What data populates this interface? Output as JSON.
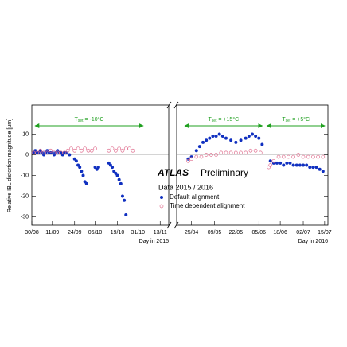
{
  "chart_data": {
    "type": "scatter",
    "ylabel": "Relative IBL distortion magnitude [μm]",
    "ylim": [
      -34,
      24
    ],
    "yticks": [
      10,
      0,
      -10,
      -20,
      -30
    ],
    "experiment": "ATLAS",
    "status": "Preliminary",
    "dataset": "Data 2015 / 2016",
    "series": [
      {
        "name": "Default alignment",
        "color": "#1030c0",
        "marker": "filled"
      },
      {
        "name": "Time dependent alignment",
        "color": "#e07090",
        "marker": "open"
      }
    ],
    "panels": [
      {
        "xlabel": "Day in 2015",
        "xlim": [
          0,
          80
        ],
        "xticks": [
          {
            "value": 0,
            "label": "30/08"
          },
          {
            "value": 12,
            "label": "11/09"
          },
          {
            "value": 25,
            "label": "24/09"
          },
          {
            "value": 37,
            "label": "06/10"
          },
          {
            "value": 50,
            "label": "19/10"
          },
          {
            "value": 62,
            "label": "31/10"
          },
          {
            "value": 75,
            "label": "13/11"
          }
        ],
        "data": [
          {
            "x": [
              1,
              2,
              3,
              4,
              5,
              6,
              7,
              8,
              9,
              10,
              11,
              12,
              13,
              14,
              15,
              16,
              17,
              18,
              19,
              20,
              22,
              25,
              26,
              27,
              28,
              29,
              30,
              31,
              32,
              37,
              38,
              39,
              45,
              46,
              47,
              48,
              49,
              50,
              51,
              52,
              53,
              54,
              55
            ],
            "values": [
              1,
              2,
              1,
              1,
              2,
              1,
              0,
              1,
              2,
              1,
              1,
              1,
              0,
              1,
              2,
              1,
              1,
              0,
              1,
              1,
              0,
              -2,
              -3,
              -5,
              -6,
              -8,
              -10,
              -13,
              -14,
              -6,
              -7,
              -6,
              -4,
              -5,
              -6,
              -8,
              -9,
              -10,
              -12,
              -14,
              -20,
              -22,
              -29
            ]
          },
          {
            "x": [
              1,
              3,
              5,
              7,
              9,
              11,
              13,
              15,
              17,
              19,
              21,
              23,
              25,
              27,
              29,
              31,
              33,
              35,
              37,
              45,
              47,
              49,
              51,
              53,
              55,
              57,
              59
            ],
            "values": [
              1,
              1,
              2,
              1,
              1,
              2,
              1,
              1,
              1,
              1,
              2,
              3,
              2,
              3,
              2,
              3,
              2,
              2,
              3,
              2,
              3,
              2,
              3,
              2,
              3,
              3,
              2
            ]
          }
        ]
      },
      {
        "xlabel": "Day in 2016",
        "xlim": [
          -9,
          83
        ],
        "xticks": [
          {
            "value": 0,
            "label": "25/04"
          },
          {
            "value": 14,
            "label": "09/05"
          },
          {
            "value": 27,
            "label": "22/05"
          },
          {
            "value": 41,
            "label": "05/06"
          },
          {
            "value": 54,
            "label": "18/06"
          },
          {
            "value": 68,
            "label": "02/07"
          },
          {
            "value": 81,
            "label": "15/07"
          }
        ],
        "data": [
          {
            "x": [
              -2,
              0,
              3,
              5,
              7,
              9,
              11,
              13,
              15,
              17,
              19,
              21,
              24,
              27,
              30,
              33,
              35,
              37,
              39,
              41,
              43,
              48,
              50,
              52,
              54,
              56,
              58,
              60,
              62,
              64,
              66,
              68,
              70,
              72,
              74,
              76,
              78,
              80
            ],
            "values": [
              -2,
              -1,
              2,
              4,
              6,
              7,
              8,
              9,
              9,
              10,
              9,
              8,
              7,
              6,
              7,
              8,
              9,
              10,
              9,
              8,
              5,
              -3,
              -4,
              -4,
              -4,
              -5,
              -4,
              -4,
              -5,
              -5,
              -5,
              -5,
              -5,
              -6,
              -6,
              -6,
              -7,
              -8
            ]
          },
          {
            "x": [
              -2,
              0,
              3,
              6,
              9,
              12,
              15,
              18,
              21,
              24,
              27,
              30,
              33,
              36,
              39,
              42,
              47,
              48,
              50,
              53,
              56,
              59,
              62,
              65,
              68,
              71,
              74,
              77,
              80
            ],
            "values": [
              -3,
              -2,
              -1,
              -1,
              0,
              0,
              0,
              1,
              1,
              1,
              1,
              1,
              1,
              2,
              2,
              1,
              -6,
              -5,
              -3,
              -1,
              -1,
              -1,
              -1,
              0,
              -1,
              -1,
              -1,
              -1,
              -1
            ]
          }
        ]
      }
    ],
    "annotations": [
      {
        "panel": 0,
        "from": 2,
        "to": 65,
        "y": 14,
        "label": "T",
        "sub": "set",
        "rest": " = -10°C"
      },
      {
        "panel": 1,
        "from": -4,
        "to": 43,
        "y": 14,
        "label": "T",
        "sub": "set",
        "rest": " = +15°C"
      },
      {
        "panel": 1,
        "from": 46,
        "to": 81,
        "y": 14,
        "label": "T",
        "sub": "set",
        "rest": " = +5°C"
      }
    ]
  }
}
